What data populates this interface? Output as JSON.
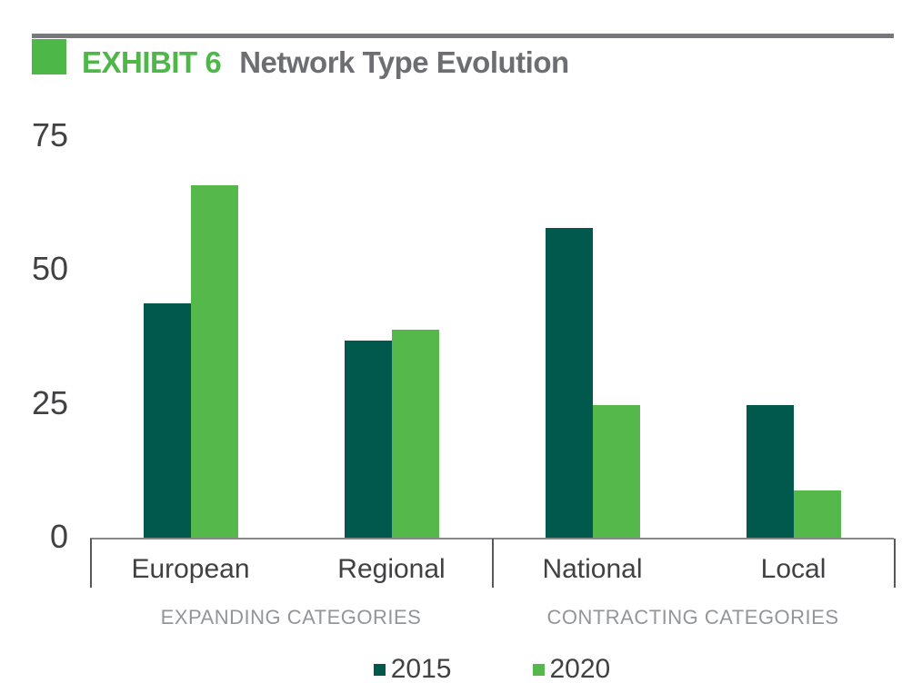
{
  "header": {
    "exhibit_label": "EXHIBIT 6",
    "title": "Network Type Evolution"
  },
  "colors": {
    "accent_green": "#4db848",
    "bar_dark_green": "#00594c",
    "bar_light_green": "#55b84b",
    "title_gray": "#6d6e71",
    "axis_text": "#414042",
    "section_text": "#939598",
    "rule_gray": "#77787b"
  },
  "chart_data": {
    "type": "bar",
    "title": "Network Type Evolution",
    "categories": [
      "European",
      "Regional",
      "National",
      "Local"
    ],
    "series": [
      {
        "name": "2015",
        "color": "#00594c",
        "values": [
          44,
          37,
          58,
          25
        ]
      },
      {
        "name": "2020",
        "color": "#55b84b",
        "values": [
          66,
          39,
          25,
          9
        ]
      }
    ],
    "yticks": [
      0,
      25,
      50,
      75
    ],
    "ylim": [
      0,
      75
    ],
    "xlabel": "",
    "ylabel": "",
    "grid": "off",
    "legend_position": "bottom-center",
    "sections": [
      {
        "label": "EXPANDING CATEGORIES",
        "categories": [
          "European",
          "Regional"
        ]
      },
      {
        "label": "CONTRACTING CATEGORIES",
        "categories": [
          "National",
          "Local"
        ]
      }
    ]
  }
}
